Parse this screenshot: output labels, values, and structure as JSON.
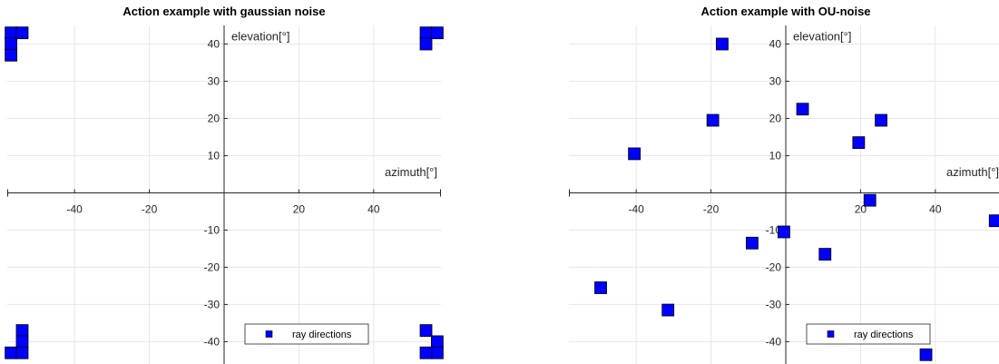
{
  "chart_data": [
    {
      "type": "scatter",
      "title": "Action example with gaussian noise",
      "xlabel": "azimuth[°]",
      "ylabel": "elevation[°]",
      "xlim": [
        -58,
        58
      ],
      "ylim": [
        -46,
        45
      ],
      "xticks": [
        -40,
        -20,
        20,
        40
      ],
      "yticks": [
        -40,
        -30,
        -20,
        -10,
        10,
        20,
        30,
        40
      ],
      "grid": true,
      "legend_placement": "bottom-right",
      "marker_color": "#0000ff",
      "series": [
        {
          "name": "ray directions",
          "x": [
            -57,
            -54,
            -57,
            -57,
            54,
            57,
            54,
            -54,
            -54,
            -57,
            -54,
            54,
            57,
            57,
            54
          ],
          "y": [
            43,
            43,
            40,
            37,
            43,
            43,
            40,
            -37,
            -40,
            -43,
            -43,
            -37,
            -40,
            -43,
            -43
          ]
        }
      ]
    },
    {
      "type": "scatter",
      "title": "Action example with OU-noise",
      "xlabel": "azimuth[°]",
      "ylabel": "elevation[°]",
      "xlim": [
        -58,
        58
      ],
      "ylim": [
        -46,
        45
      ],
      "xticks": [
        -40,
        -20,
        20,
        40
      ],
      "yticks": [
        -40,
        -30,
        -20,
        -10,
        10,
        20,
        30,
        40
      ],
      "grid": true,
      "legend_placement": "bottom-right",
      "marker_color": "#0000ff",
      "series": [
        {
          "name": "ray directions",
          "x": [
            -17,
            -19.5,
            4.5,
            25.5,
            19.5,
            -40.5,
            22.5,
            56,
            -0.5,
            -9,
            10.5,
            -49.5,
            -31.5,
            37.5
          ],
          "y": [
            40,
            19.5,
            22.5,
            19.5,
            13.5,
            10.5,
            -2,
            -7.5,
            -10.5,
            -13.5,
            -16.5,
            -25.5,
            -31.5,
            -43.5
          ]
        }
      ]
    }
  ]
}
